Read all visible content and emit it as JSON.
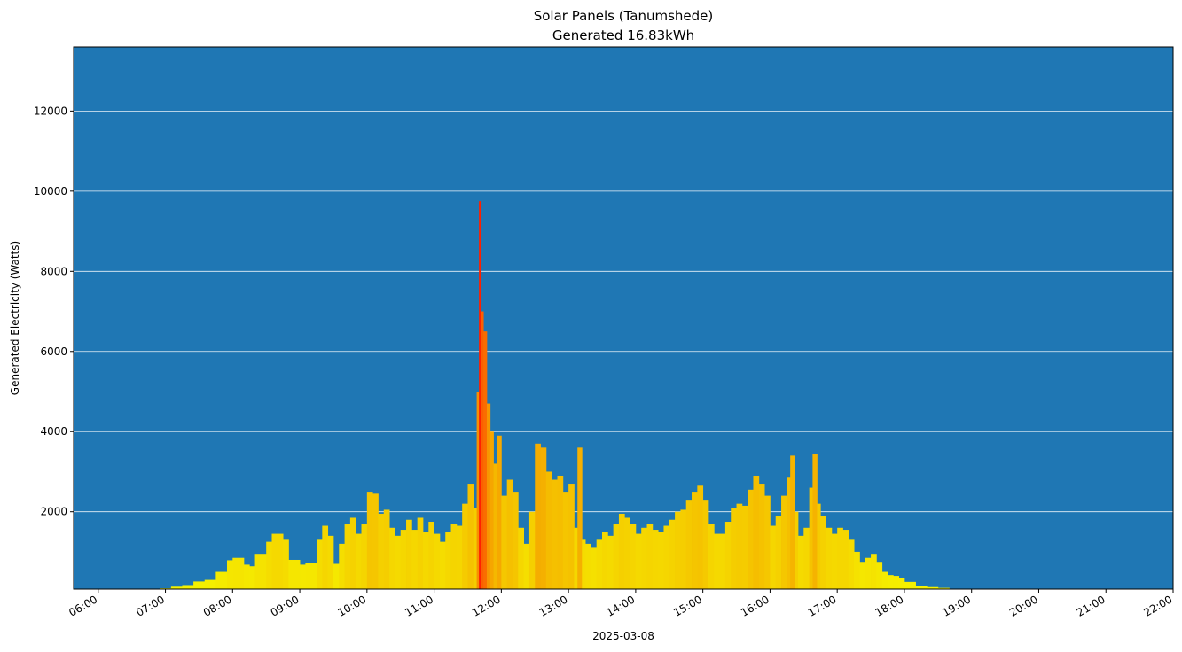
{
  "chart_data": {
    "type": "bar",
    "title": "Solar Panels (Tanumshede)",
    "subtitle": "Generated 16.83kWh",
    "xlabel": "2025-03-08",
    "ylabel": "Generated Electricity (Watts)",
    "x_range": [
      "05:38",
      "22:00"
    ],
    "ylim": [
      70,
      13600
    ],
    "yticks": [
      2000,
      4000,
      6000,
      8000,
      10000,
      12000
    ],
    "xticks": [
      "06:00",
      "07:00",
      "08:00",
      "09:00",
      "10:00",
      "11:00",
      "12:00",
      "13:00",
      "14:00",
      "15:00",
      "16:00",
      "17:00",
      "18:00",
      "19:00",
      "20:00",
      "21:00",
      "22:00"
    ],
    "grid": "y",
    "background_color": "#1f77b4",
    "bar_colormap": [
      "#f5f500",
      "#f5b400",
      "#ff2000"
    ],
    "points": [
      [
        "06:55",
        90
      ],
      [
        "07:05",
        130
      ],
      [
        "07:15",
        170
      ],
      [
        "07:25",
        260
      ],
      [
        "07:35",
        300
      ],
      [
        "07:45",
        500
      ],
      [
        "07:55",
        790
      ],
      [
        "08:00",
        850
      ],
      [
        "08:10",
        680
      ],
      [
        "08:15",
        640
      ],
      [
        "08:20",
        950
      ],
      [
        "08:30",
        1250
      ],
      [
        "08:35",
        1450
      ],
      [
        "08:45",
        1300
      ],
      [
        "08:50",
        800
      ],
      [
        "09:00",
        680
      ],
      [
        "09:05",
        720
      ],
      [
        "09:15",
        1300
      ],
      [
        "09:20",
        1650
      ],
      [
        "09:25",
        1400
      ],
      [
        "09:30",
        700
      ],
      [
        "09:35",
        1200
      ],
      [
        "09:40",
        1700
      ],
      [
        "09:45",
        1850
      ],
      [
        "09:50",
        1450
      ],
      [
        "09:55",
        1700
      ],
      [
        "10:00",
        2500
      ],
      [
        "10:05",
        2450
      ],
      [
        "10:10",
        1950
      ],
      [
        "10:15",
        2050
      ],
      [
        "10:20",
        1600
      ],
      [
        "10:25",
        1400
      ],
      [
        "10:30",
        1550
      ],
      [
        "10:35",
        1800
      ],
      [
        "10:40",
        1550
      ],
      [
        "10:45",
        1850
      ],
      [
        "10:50",
        1500
      ],
      [
        "10:55",
        1750
      ],
      [
        "11:00",
        1450
      ],
      [
        "11:05",
        1250
      ],
      [
        "11:10",
        1500
      ],
      [
        "11:15",
        1700
      ],
      [
        "11:20",
        1650
      ],
      [
        "11:25",
        2200
      ],
      [
        "11:30",
        2700
      ],
      [
        "11:35",
        2100
      ],
      [
        "11:38",
        5000
      ],
      [
        "11:40",
        9750
      ],
      [
        "11:42",
        7000
      ],
      [
        "11:44",
        6500
      ],
      [
        "11:47",
        4700
      ],
      [
        "11:50",
        4000
      ],
      [
        "11:53",
        3200
      ],
      [
        "11:56",
        3900
      ],
      [
        "12:00",
        2400
      ],
      [
        "12:05",
        2800
      ],
      [
        "12:10",
        2500
      ],
      [
        "12:15",
        1600
      ],
      [
        "12:20",
        1200
      ],
      [
        "12:25",
        2000
      ],
      [
        "12:30",
        3700
      ],
      [
        "12:35",
        3600
      ],
      [
        "12:40",
        3000
      ],
      [
        "12:45",
        2800
      ],
      [
        "12:50",
        2900
      ],
      [
        "12:55",
        2500
      ],
      [
        "13:00",
        2700
      ],
      [
        "13:05",
        1600
      ],
      [
        "13:08",
        3600
      ],
      [
        "13:12",
        1300
      ],
      [
        "13:15",
        1200
      ],
      [
        "13:20",
        1100
      ],
      [
        "13:25",
        1300
      ],
      [
        "13:30",
        1500
      ],
      [
        "13:35",
        1400
      ],
      [
        "13:40",
        1700
      ],
      [
        "13:45",
        1950
      ],
      [
        "13:50",
        1850
      ],
      [
        "13:55",
        1700
      ],
      [
        "14:00",
        1450
      ],
      [
        "14:05",
        1600
      ],
      [
        "14:10",
        1700
      ],
      [
        "14:15",
        1550
      ],
      [
        "14:20",
        1500
      ],
      [
        "14:25",
        1650
      ],
      [
        "14:30",
        1800
      ],
      [
        "14:35",
        2000
      ],
      [
        "14:40",
        2050
      ],
      [
        "14:45",
        2300
      ],
      [
        "14:50",
        2500
      ],
      [
        "14:55",
        2650
      ],
      [
        "15:00",
        2300
      ],
      [
        "15:05",
        1700
      ],
      [
        "15:10",
        1450
      ],
      [
        "15:15",
        1450
      ],
      [
        "15:20",
        1750
      ],
      [
        "15:25",
        2100
      ],
      [
        "15:30",
        2200
      ],
      [
        "15:35",
        2150
      ],
      [
        "15:40",
        2550
      ],
      [
        "15:45",
        2900
      ],
      [
        "15:50",
        2700
      ],
      [
        "15:55",
        2400
      ],
      [
        "16:00",
        1650
      ],
      [
        "16:05",
        1900
      ],
      [
        "16:10",
        2400
      ],
      [
        "16:15",
        2850
      ],
      [
        "16:18",
        3400
      ],
      [
        "16:22",
        2000
      ],
      [
        "16:25",
        1400
      ],
      [
        "16:30",
        1600
      ],
      [
        "16:35",
        2600
      ],
      [
        "16:38",
        3450
      ],
      [
        "16:42",
        2200
      ],
      [
        "16:45",
        1900
      ],
      [
        "16:50",
        1600
      ],
      [
        "16:55",
        1450
      ],
      [
        "17:00",
        1600
      ],
      [
        "17:05",
        1550
      ],
      [
        "17:10",
        1300
      ],
      [
        "17:15",
        1000
      ],
      [
        "17:20",
        750
      ],
      [
        "17:25",
        850
      ],
      [
        "17:30",
        950
      ],
      [
        "17:35",
        750
      ],
      [
        "17:40",
        500
      ],
      [
        "17:45",
        420
      ],
      [
        "17:50",
        400
      ],
      [
        "17:55",
        350
      ],
      [
        "18:00",
        250
      ],
      [
        "18:10",
        150
      ],
      [
        "18:20",
        120
      ],
      [
        "18:30",
        100
      ],
      [
        "18:40",
        80
      ]
    ]
  }
}
